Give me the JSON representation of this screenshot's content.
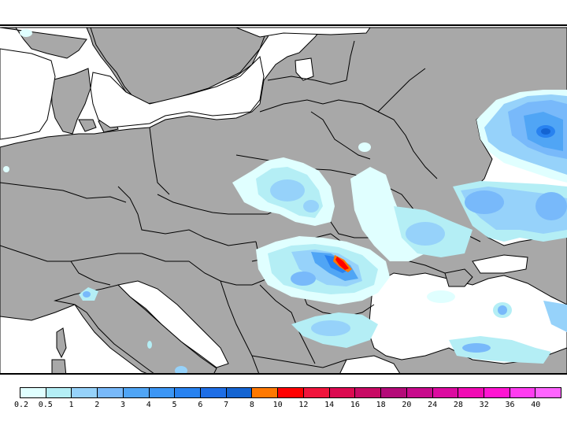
{
  "map": {
    "region": "Central & Eastern Europe / Black Sea",
    "land_color": "#a8a8a8",
    "sea_color": "#ffffff",
    "border_color": "#000000",
    "features": {
      "max_intensity_location": "Romania (Carpathians), red/orange cell",
      "heavy_area_northeast": "Western Russia, blue 3-7 range",
      "black_sea": "mostly white with scattered light blue"
    }
  },
  "legend": {
    "colors": [
      "#e0ffff",
      "#b4eef5",
      "#96d2fa",
      "#78b9fa",
      "#50a5f5",
      "#3c96f5",
      "#2882f0",
      "#1e6ee6",
      "#1464d2",
      "#ff7800",
      "#ff0000",
      "#f0143c",
      "#dc0a50",
      "#c80a64",
      "#b40a78",
      "#c80a8c",
      "#dc0aa0",
      "#f00ab4",
      "#ff14d2",
      "#ff3cf0",
      "#ff64ff"
    ],
    "labels": [
      "0.2",
      "0.5",
      "1",
      "2",
      "3",
      "4",
      "5",
      "6",
      "7",
      "8",
      "10",
      "12",
      "14",
      "16",
      "18",
      "20",
      "24",
      "28",
      "32",
      "36",
      "40"
    ]
  }
}
